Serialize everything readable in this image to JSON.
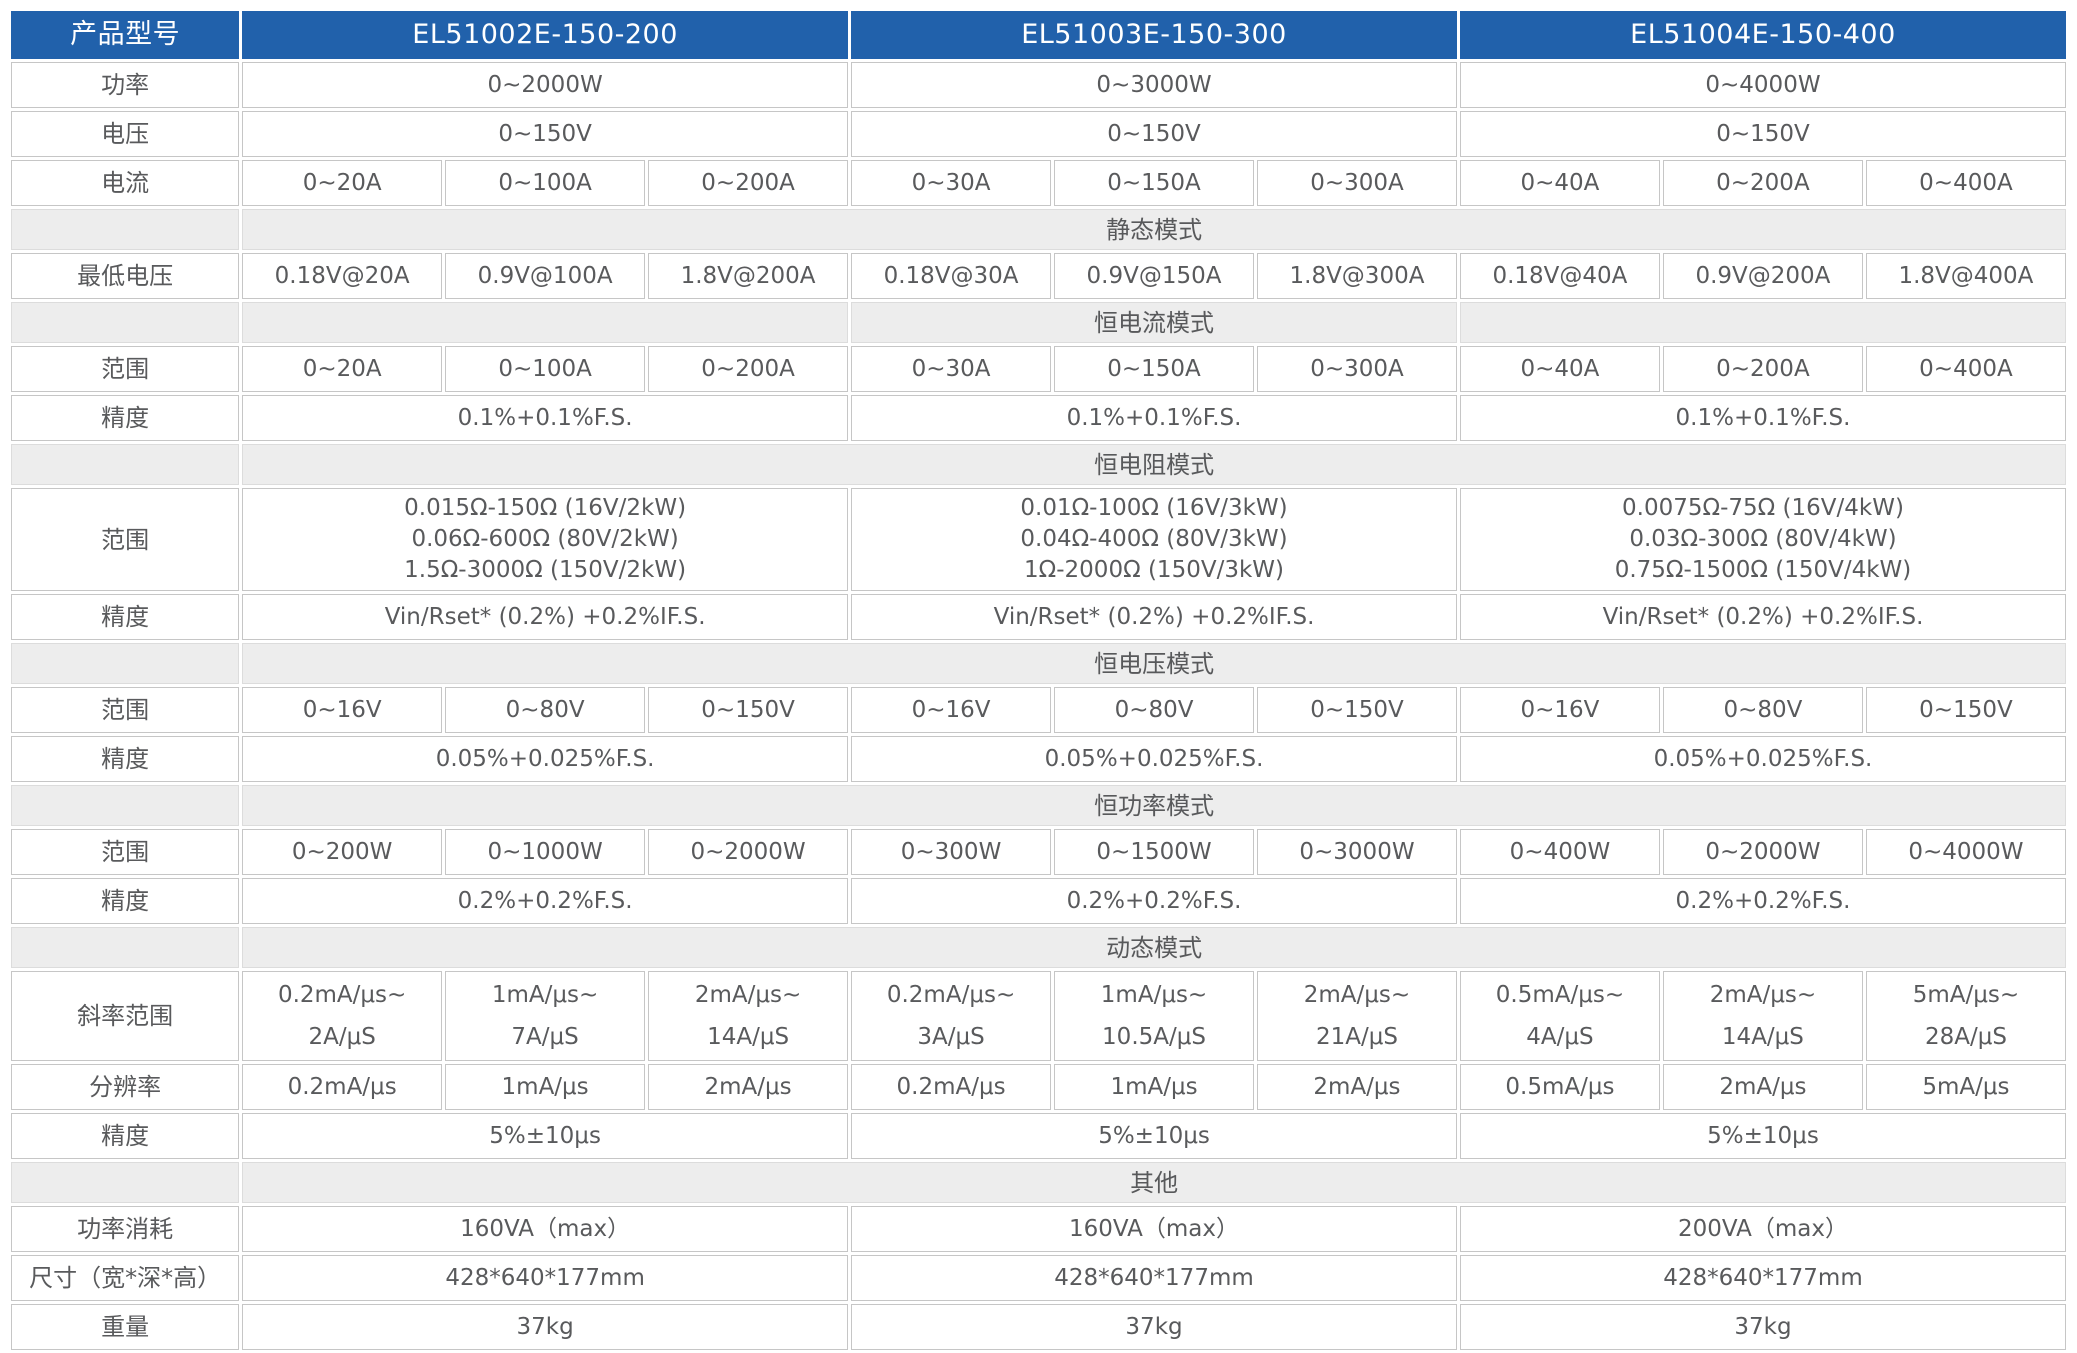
{
  "colors": {
    "header_bg": "#2161ab",
    "header_text": "#ffffff",
    "section_bg": "#ededed",
    "cell_border": "#c6c6c6",
    "text": "#595a5c"
  },
  "table": {
    "corner_label": "产品型号",
    "models": [
      "EL51002E-150-200",
      "EL51003E-150-300",
      "EL51004E-150-400"
    ],
    "rows": [
      {
        "type": "header",
        "cells": [
          {
            "t": "产品型号",
            "s": 1,
            "k": "corner"
          },
          {
            "t": "EL51002E-150-200",
            "s": 3,
            "k": "model"
          },
          {
            "t": "EL51003E-150-300",
            "s": 3,
            "k": "model"
          },
          {
            "t": "EL51004E-150-400",
            "s": 3,
            "k": "model"
          }
        ]
      },
      {
        "type": "data",
        "cells": [
          {
            "t": "功率",
            "s": 1,
            "k": "label"
          },
          {
            "t": "0~2000W",
            "s": 3
          },
          {
            "t": "0~3000W",
            "s": 3
          },
          {
            "t": "0~4000W",
            "s": 3
          }
        ]
      },
      {
        "type": "data",
        "cells": [
          {
            "t": "电压",
            "s": 1,
            "k": "label"
          },
          {
            "t": "0~150V",
            "s": 3
          },
          {
            "t": "0~150V",
            "s": 3
          },
          {
            "t": "0~150V",
            "s": 3
          }
        ]
      },
      {
        "type": "data",
        "cells": [
          {
            "t": "电流",
            "s": 1,
            "k": "label"
          },
          {
            "t": "0~20A",
            "s": 1
          },
          {
            "t": "0~100A",
            "s": 1
          },
          {
            "t": "0~200A",
            "s": 1
          },
          {
            "t": "0~30A",
            "s": 1
          },
          {
            "t": "0~150A",
            "s": 1
          },
          {
            "t": "0~300A",
            "s": 1
          },
          {
            "t": "0~40A",
            "s": 1
          },
          {
            "t": "0~200A",
            "s": 1
          },
          {
            "t": "0~400A",
            "s": 1
          }
        ]
      },
      {
        "type": "section",
        "cells": [
          {
            "t": "",
            "s": 1,
            "k": "section"
          },
          {
            "t": "静态模式",
            "s": 9,
            "k": "section"
          }
        ]
      },
      {
        "type": "data",
        "cells": [
          {
            "t": "最低电压",
            "s": 1,
            "k": "label"
          },
          {
            "t": "0.18V@20A",
            "s": 1
          },
          {
            "t": "0.9V@100A",
            "s": 1
          },
          {
            "t": "1.8V@200A",
            "s": 1
          },
          {
            "t": "0.18V@30A",
            "s": 1
          },
          {
            "t": "0.9V@150A",
            "s": 1
          },
          {
            "t": "1.8V@300A",
            "s": 1
          },
          {
            "t": "0.18V@40A",
            "s": 1
          },
          {
            "t": "0.9V@200A",
            "s": 1
          },
          {
            "t": "1.8V@400A",
            "s": 1
          }
        ]
      },
      {
        "type": "section",
        "cells": [
          {
            "t": "",
            "s": 1,
            "k": "section"
          },
          {
            "t": "",
            "s": 3,
            "k": "section"
          },
          {
            "t": "恒电流模式",
            "s": 3,
            "k": "section"
          },
          {
            "t": "",
            "s": 3,
            "k": "section"
          }
        ]
      },
      {
        "type": "data",
        "cells": [
          {
            "t": "范围",
            "s": 1,
            "k": "label"
          },
          {
            "t": "0~20A",
            "s": 1
          },
          {
            "t": "0~100A",
            "s": 1
          },
          {
            "t": "0~200A",
            "s": 1
          },
          {
            "t": "0~30A",
            "s": 1
          },
          {
            "t": "0~150A",
            "s": 1
          },
          {
            "t": "0~300A",
            "s": 1
          },
          {
            "t": "0~40A",
            "s": 1
          },
          {
            "t": "0~200A",
            "s": 1
          },
          {
            "t": "0~400A",
            "s": 1
          }
        ]
      },
      {
        "type": "data",
        "cells": [
          {
            "t": "精度",
            "s": 1,
            "k": "label"
          },
          {
            "t": "0.1%+0.1%F.S.",
            "s": 3
          },
          {
            "t": "0.1%+0.1%F.S.",
            "s": 3
          },
          {
            "t": "0.1%+0.1%F.S.",
            "s": 3
          }
        ]
      },
      {
        "type": "section",
        "cells": [
          {
            "t": "",
            "s": 1,
            "k": "section"
          },
          {
            "t": "恒电阻模式",
            "s": 9,
            "k": "section"
          }
        ]
      },
      {
        "type": "data",
        "cells": [
          {
            "t": "范围",
            "s": 1,
            "k": "label"
          },
          {
            "lines": [
              "0.015Ω-150Ω (16V/2kW)",
              "0.06Ω-600Ω (80V/2kW)",
              "1.5Ω-3000Ω (150V/2kW)"
            ],
            "s": 3
          },
          {
            "lines": [
              "0.01Ω-100Ω (16V/3kW)",
              "0.04Ω-400Ω (80V/3kW)",
              "1Ω-2000Ω (150V/3kW)"
            ],
            "s": 3
          },
          {
            "lines": [
              "0.0075Ω-75Ω (16V/4kW)",
              "0.03Ω-300Ω (80V/4kW)",
              "0.75Ω-1500Ω (150V/4kW)"
            ],
            "s": 3
          }
        ]
      },
      {
        "type": "data",
        "cells": [
          {
            "t": "精度",
            "s": 1,
            "k": "label"
          },
          {
            "t": "Vin/Rset* (0.2%) +0.2%IF.S.",
            "s": 3
          },
          {
            "t": "Vin/Rset* (0.2%) +0.2%IF.S.",
            "s": 3
          },
          {
            "t": "Vin/Rset* (0.2%) +0.2%IF.S.",
            "s": 3
          }
        ]
      },
      {
        "type": "section",
        "cells": [
          {
            "t": "",
            "s": 1,
            "k": "section"
          },
          {
            "t": "恒电压模式",
            "s": 9,
            "k": "section"
          }
        ]
      },
      {
        "type": "data",
        "cells": [
          {
            "t": "范围",
            "s": 1,
            "k": "label"
          },
          {
            "t": "0~16V",
            "s": 1
          },
          {
            "t": "0~80V",
            "s": 1
          },
          {
            "t": "0~150V",
            "s": 1
          },
          {
            "t": "0~16V",
            "s": 1
          },
          {
            "t": "0~80V",
            "s": 1
          },
          {
            "t": "0~150V",
            "s": 1
          },
          {
            "t": "0~16V",
            "s": 1
          },
          {
            "t": "0~80V",
            "s": 1
          },
          {
            "t": "0~150V",
            "s": 1
          }
        ]
      },
      {
        "type": "data",
        "cells": [
          {
            "t": "精度",
            "s": 1,
            "k": "label"
          },
          {
            "t": "0.05%+0.025%F.S.",
            "s": 3
          },
          {
            "t": "0.05%+0.025%F.S.",
            "s": 3
          },
          {
            "t": "0.05%+0.025%F.S.",
            "s": 3
          }
        ]
      },
      {
        "type": "section",
        "cells": [
          {
            "t": "",
            "s": 1,
            "k": "section"
          },
          {
            "t": "恒功率模式",
            "s": 9,
            "k": "section"
          }
        ]
      },
      {
        "type": "data",
        "cells": [
          {
            "t": "范围",
            "s": 1,
            "k": "label"
          },
          {
            "t": "0~200W",
            "s": 1
          },
          {
            "t": "0~1000W",
            "s": 1
          },
          {
            "t": "0~2000W",
            "s": 1
          },
          {
            "t": "0~300W",
            "s": 1
          },
          {
            "t": "0~1500W",
            "s": 1
          },
          {
            "t": "0~3000W",
            "s": 1
          },
          {
            "t": "0~400W",
            "s": 1
          },
          {
            "t": "0~2000W",
            "s": 1
          },
          {
            "t": "0~4000W",
            "s": 1
          }
        ]
      },
      {
        "type": "data",
        "cells": [
          {
            "t": "精度",
            "s": 1,
            "k": "label"
          },
          {
            "t": "0.2%+0.2%F.S.",
            "s": 3
          },
          {
            "t": "0.2%+0.2%F.S.",
            "s": 3
          },
          {
            "t": "0.2%+0.2%F.S.",
            "s": 3
          }
        ]
      },
      {
        "type": "section",
        "cells": [
          {
            "t": "",
            "s": 1,
            "k": "section"
          },
          {
            "t": "动态模式",
            "s": 9,
            "k": "section"
          }
        ]
      },
      {
        "type": "data",
        "cells": [
          {
            "t": "斜率范围",
            "s": 1,
            "k": "label"
          },
          {
            "lines": [
              "0.2mA/μs~",
              "2A/μS"
            ],
            "s": 1
          },
          {
            "lines": [
              "1mA/μs~",
              "7A/μS"
            ],
            "s": 1
          },
          {
            "lines": [
              "2mA/μs~",
              "14A/μS"
            ],
            "s": 1
          },
          {
            "lines": [
              "0.2mA/μs~",
              "3A/μS"
            ],
            "s": 1
          },
          {
            "lines": [
              "1mA/μs~",
              "10.5A/μS"
            ],
            "s": 1
          },
          {
            "lines": [
              "2mA/μs~",
              "21A/μS"
            ],
            "s": 1
          },
          {
            "lines": [
              "0.5mA/μs~",
              "4A/μS"
            ],
            "s": 1
          },
          {
            "lines": [
              "2mA/μs~",
              "14A/μS"
            ],
            "s": 1
          },
          {
            "lines": [
              "5mA/μs~",
              "28A/μS"
            ],
            "s": 1
          }
        ]
      },
      {
        "type": "data",
        "cells": [
          {
            "t": "分辨率",
            "s": 1,
            "k": "label"
          },
          {
            "t": "0.2mA/μs",
            "s": 1
          },
          {
            "t": "1mA/μs",
            "s": 1
          },
          {
            "t": "2mA/μs",
            "s": 1
          },
          {
            "t": "0.2mA/μs",
            "s": 1
          },
          {
            "t": "1mA/μs",
            "s": 1
          },
          {
            "t": "2mA/μs",
            "s": 1
          },
          {
            "t": "0.5mA/μs",
            "s": 1
          },
          {
            "t": "2mA/μs",
            "s": 1
          },
          {
            "t": "5mA/μs",
            "s": 1
          }
        ]
      },
      {
        "type": "data",
        "cells": [
          {
            "t": "精度",
            "s": 1,
            "k": "label"
          },
          {
            "t": "5%±10μs",
            "s": 3
          },
          {
            "t": "5%±10μs",
            "s": 3
          },
          {
            "t": "5%±10μs",
            "s": 3
          }
        ]
      },
      {
        "type": "section",
        "cells": [
          {
            "t": "",
            "s": 1,
            "k": "section"
          },
          {
            "t": "其他",
            "s": 9,
            "k": "section"
          }
        ]
      },
      {
        "type": "data",
        "cells": [
          {
            "t": "功率消耗",
            "s": 1,
            "k": "label"
          },
          {
            "t": "160VA（max）",
            "s": 3
          },
          {
            "t": "160VA（max）",
            "s": 3
          },
          {
            "t": "200VA（max）",
            "s": 3
          }
        ]
      },
      {
        "type": "data",
        "cells": [
          {
            "t": "尺寸（宽*深*高）",
            "s": 1,
            "k": "label"
          },
          {
            "t": "428*640*177mm",
            "s": 3
          },
          {
            "t": "428*640*177mm",
            "s": 3
          },
          {
            "t": "428*640*177mm",
            "s": 3
          }
        ]
      },
      {
        "type": "data",
        "cells": [
          {
            "t": "重量",
            "s": 1,
            "k": "label"
          },
          {
            "t": "37kg",
            "s": 3
          },
          {
            "t": "37kg",
            "s": 3
          },
          {
            "t": "37kg",
            "s": 3
          }
        ]
      }
    ]
  }
}
